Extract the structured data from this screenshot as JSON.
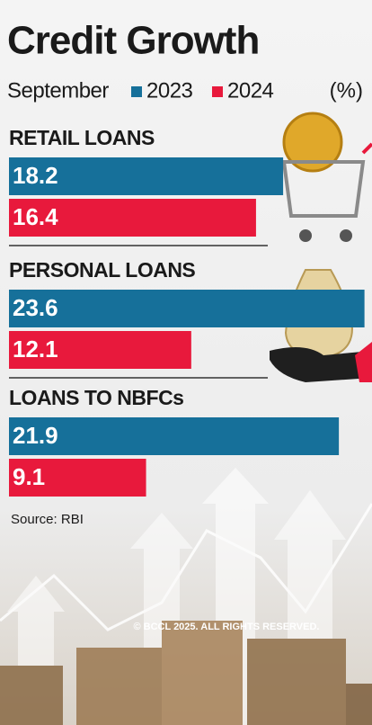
{
  "chart_data": {
    "type": "bar",
    "orientation": "horizontal",
    "title": "Credit Growth",
    "legend_title": "September",
    "unit_label": "(%)",
    "categories": [
      "RETAIL LOANS",
      "PERSONAL LOANS",
      "LOANS TO NBFCs"
    ],
    "series": [
      {
        "name": "2023",
        "color": "#16709a",
        "values": [
          18.2,
          23.6,
          21.9
        ]
      },
      {
        "name": "2024",
        "color": "#e8193c",
        "values": [
          16.4,
          12.1,
          9.1
        ]
      }
    ],
    "xlim": [
      0,
      24.1
    ],
    "source": "Source: RBI",
    "copyright": "© BCCL 2025. ALL RIGHTS RESERVED."
  }
}
